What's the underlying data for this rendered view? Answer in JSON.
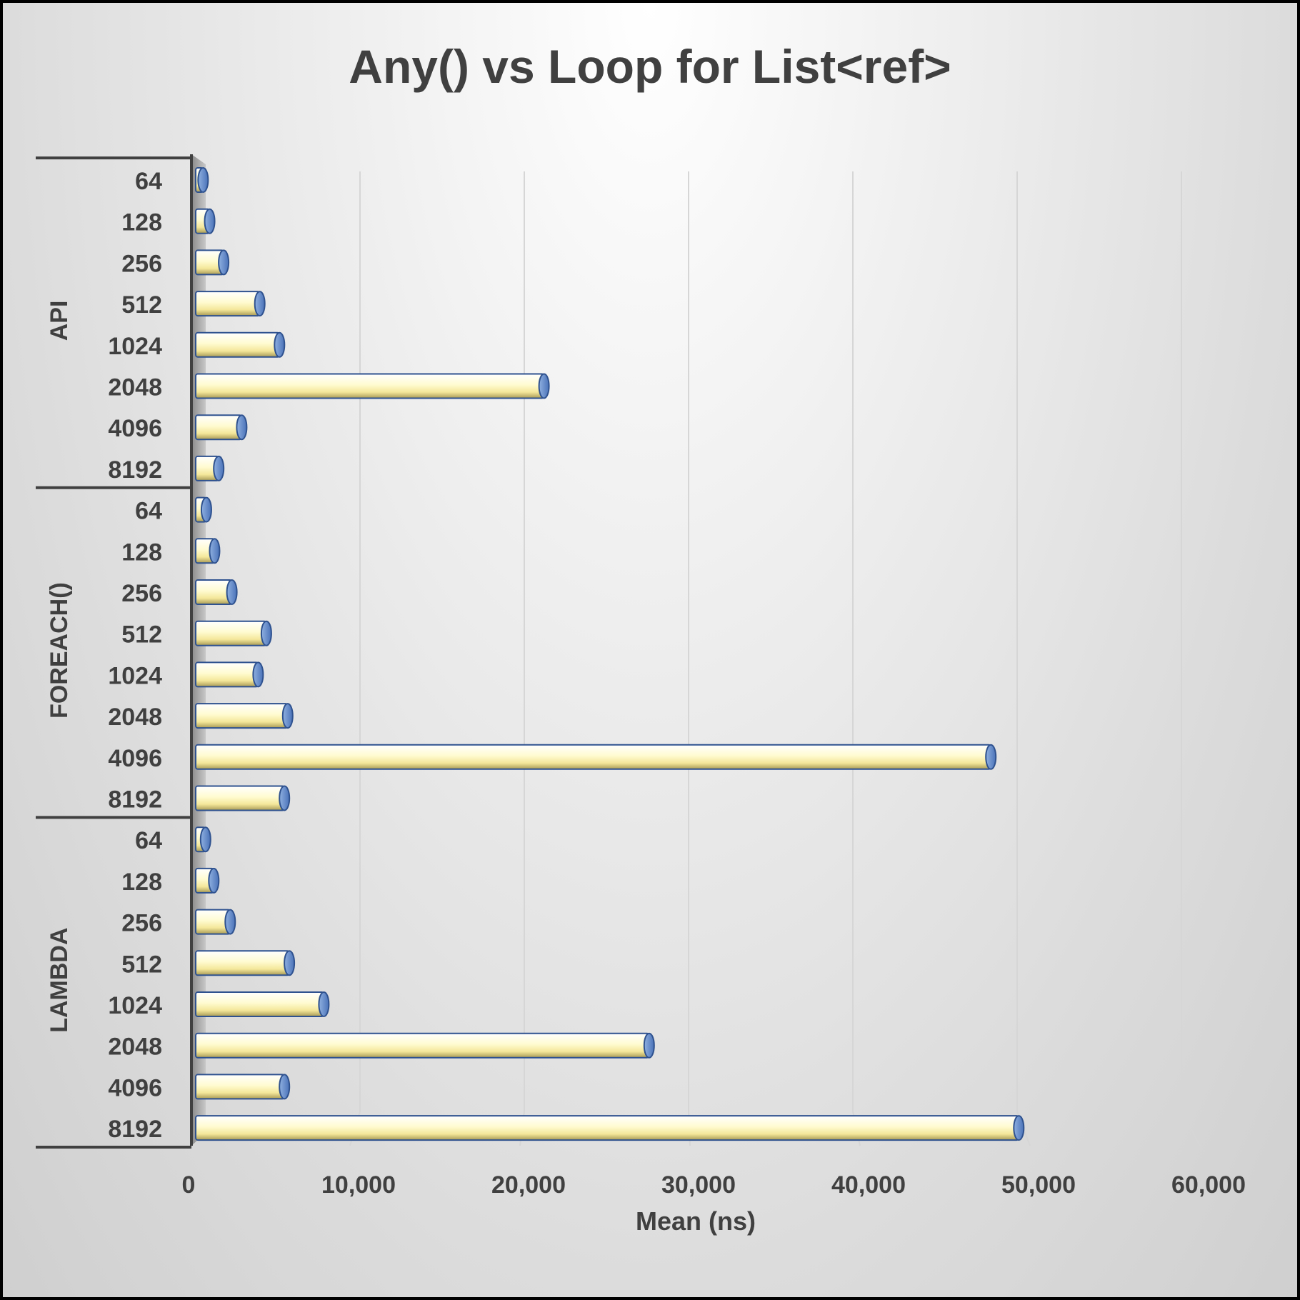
{
  "chart_data": {
    "type": "bar",
    "orientation": "horizontal",
    "title": "Any() vs Loop for List<ref>",
    "xlabel": "Mean (ns)",
    "ylabel": "",
    "xlim": [
      0,
      60000
    ],
    "x_ticks": [
      "0",
      "10,000",
      "20,000",
      "30,000",
      "40,000",
      "50,000",
      "60,000"
    ],
    "grid": true,
    "legend": "none",
    "bar_color": "#fff8c0",
    "bar_outline": "#2f528f",
    "groups": [
      {
        "name": "API",
        "categories": [
          "64",
          "128",
          "256",
          "512",
          "1024",
          "2048",
          "4096",
          "8192"
        ],
        "values": [
          450,
          850,
          1700,
          3900,
          5100,
          21200,
          2800,
          1400
        ]
      },
      {
        "name": "FOREACH()",
        "categories": [
          "64",
          "128",
          "256",
          "512",
          "1024",
          "2048",
          "4096",
          "8192"
        ],
        "values": [
          650,
          1150,
          2200,
          4300,
          3800,
          5600,
          48400,
          5400
        ]
      },
      {
        "name": "LAMBDA",
        "categories": [
          "64",
          "128",
          "256",
          "512",
          "1024",
          "2048",
          "4096",
          "8192"
        ],
        "values": [
          600,
          1100,
          2100,
          5700,
          7800,
          27600,
          5400,
          50100
        ]
      }
    ]
  }
}
